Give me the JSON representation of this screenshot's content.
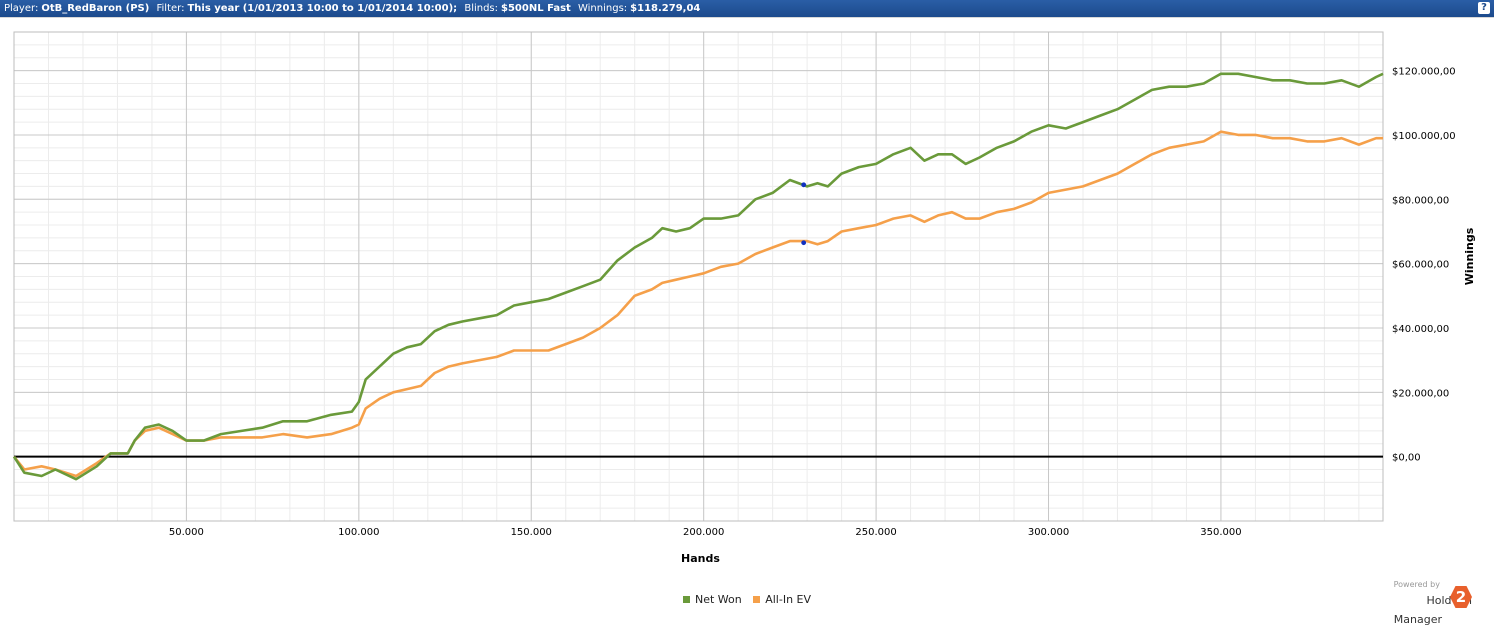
{
  "header": {
    "player_label": "Player:",
    "player_value": "OtB_RedBaron (PS)",
    "filter_label": "Filter:",
    "filter_value": "This year (1/01/2013 10:00 to 1/01/2014 10:00);",
    "blinds_label": "Blinds:",
    "blinds_value": "$500NL Fast",
    "winnings_label": "Winnings:",
    "winnings_value": "$118.279,04",
    "help_label": "?"
  },
  "branding": {
    "powered_by": "Powered by",
    "product": "Hold'em Manager",
    "logo_text": "2"
  },
  "chart_data": {
    "type": "line",
    "xlabel": "Hands",
    "ylabel": "Winnings",
    "xlim": [
      0,
      397000
    ],
    "ylim": [
      -20000,
      132000
    ],
    "x_ticks": [
      50000,
      100000,
      150000,
      200000,
      250000,
      300000,
      350000
    ],
    "x_tick_labels": [
      "50.000",
      "100.000",
      "150.000",
      "200.000",
      "250.000",
      "300.000",
      "350.000"
    ],
    "y_ticks": [
      0,
      20000,
      40000,
      60000,
      80000,
      100000,
      120000
    ],
    "y_tick_labels": [
      "$0,00",
      "$20.000,00",
      "$40.000,00",
      "$60.000,00",
      "$80.000,00",
      "$100.000,00",
      "$120.000,00"
    ],
    "grid": true,
    "legend_position": "bottom-center",
    "series": [
      {
        "name": "Net Won",
        "color": "#6a9a3a",
        "x": [
          0,
          3000,
          8000,
          12000,
          18000,
          24000,
          28000,
          33000,
          35000,
          38000,
          42000,
          46000,
          50000,
          55000,
          60000,
          66000,
          72000,
          78000,
          85000,
          92000,
          98000,
          100000,
          102000,
          106000,
          110000,
          114000,
          118000,
          122000,
          126000,
          130000,
          135000,
          140000,
          145000,
          150000,
          155000,
          160000,
          165000,
          170000,
          175000,
          180000,
          185000,
          188000,
          192000,
          196000,
          200000,
          205000,
          210000,
          215000,
          220000,
          225000,
          230000,
          233000,
          236000,
          240000,
          245000,
          250000,
          255000,
          260000,
          264000,
          268000,
          272000,
          276000,
          280000,
          285000,
          290000,
          295000,
          300000,
          305000,
          310000,
          315000,
          320000,
          325000,
          330000,
          335000,
          340000,
          345000,
          350000,
          355000,
          360000,
          365000,
          370000,
          375000,
          380000,
          385000,
          390000,
          395000,
          397000
        ],
        "y": [
          0,
          -5000,
          -6000,
          -4000,
          -7000,
          -3000,
          1000,
          1000,
          5000,
          9000,
          10000,
          8000,
          5000,
          5000,
          7000,
          8000,
          9000,
          11000,
          11000,
          13000,
          14000,
          17000,
          24000,
          28000,
          32000,
          34000,
          35000,
          39000,
          41000,
          42000,
          43000,
          44000,
          47000,
          48000,
          49000,
          51000,
          53000,
          55000,
          61000,
          65000,
          68000,
          71000,
          70000,
          71000,
          74000,
          74000,
          75000,
          80000,
          82000,
          86000,
          84000,
          85000,
          84000,
          88000,
          90000,
          91000,
          94000,
          96000,
          92000,
          94000,
          94000,
          91000,
          93000,
          96000,
          98000,
          101000,
          103000,
          102000,
          104000,
          106000,
          108000,
          111000,
          114000,
          115000,
          115000,
          116000,
          119000,
          119000,
          118000,
          117000,
          117000,
          116000,
          116000,
          117000,
          115000,
          118000,
          119000
        ]
      },
      {
        "name": "All-In EV",
        "color": "#f5a04a",
        "x": [
          0,
          3000,
          8000,
          12000,
          18000,
          24000,
          28000,
          33000,
          35000,
          38000,
          42000,
          46000,
          50000,
          55000,
          60000,
          66000,
          72000,
          78000,
          85000,
          92000,
          98000,
          100000,
          102000,
          106000,
          110000,
          114000,
          118000,
          122000,
          126000,
          130000,
          135000,
          140000,
          145000,
          150000,
          155000,
          160000,
          165000,
          170000,
          175000,
          180000,
          185000,
          188000,
          192000,
          196000,
          200000,
          205000,
          210000,
          215000,
          220000,
          225000,
          230000,
          233000,
          236000,
          240000,
          245000,
          250000,
          255000,
          260000,
          264000,
          268000,
          272000,
          276000,
          280000,
          285000,
          290000,
          295000,
          300000,
          305000,
          310000,
          315000,
          320000,
          325000,
          330000,
          335000,
          340000,
          345000,
          350000,
          355000,
          360000,
          365000,
          370000,
          375000,
          380000,
          385000,
          390000,
          395000,
          397000
        ],
        "y": [
          0,
          -4000,
          -3000,
          -4000,
          -6000,
          -2000,
          1000,
          1000,
          5000,
          8000,
          9000,
          7000,
          5000,
          5000,
          6000,
          6000,
          6000,
          7000,
          6000,
          7000,
          9000,
          10000,
          15000,
          18000,
          20000,
          21000,
          22000,
          26000,
          28000,
          29000,
          30000,
          31000,
          33000,
          33000,
          33000,
          35000,
          37000,
          40000,
          44000,
          50000,
          52000,
          54000,
          55000,
          56000,
          57000,
          59000,
          60000,
          63000,
          65000,
          67000,
          67000,
          66000,
          67000,
          70000,
          71000,
          72000,
          74000,
          75000,
          73000,
          75000,
          76000,
          74000,
          74000,
          76000,
          77000,
          79000,
          82000,
          83000,
          84000,
          86000,
          88000,
          91000,
          94000,
          96000,
          97000,
          98000,
          101000,
          100000,
          100000,
          99000,
          99000,
          98000,
          98000,
          99000,
          97000,
          99000,
          99000
        ]
      }
    ],
    "markers": [
      {
        "series": "Net Won",
        "x": 229000,
        "y": 84500,
        "color": "#1030c0"
      },
      {
        "series": "All-In EV",
        "x": 229000,
        "y": 66500,
        "color": "#1030c0"
      }
    ]
  }
}
